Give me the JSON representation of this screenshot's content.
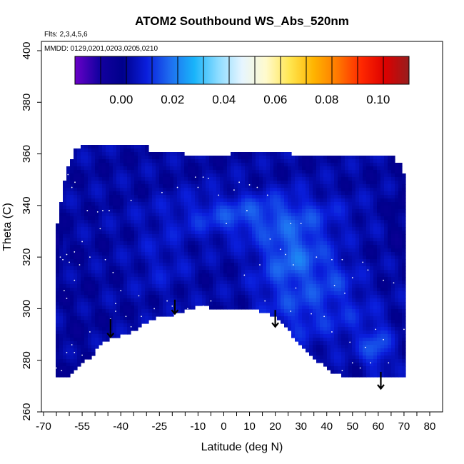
{
  "chart_data": {
    "type": "heatmap",
    "title": "ATOM2 Southbound WS_Abs_520nm",
    "flights_note": "Flts: 2,3,4,5,6",
    "dates_note": "MMDD: 0129,0201,0203,0205,0210",
    "xlabel": "Latitude (deg N)",
    "ylabel": "Theta (C)",
    "xlim": [
      -70,
      85
    ],
    "ylim": [
      260,
      405
    ],
    "x_tick_labels": [
      "-70",
      "-55",
      "-40",
      "-25",
      "-10",
      "0",
      "10",
      "20",
      "30",
      "40",
      "50",
      "60",
      "70",
      "80"
    ],
    "y_tick_labels": [
      "260",
      "280",
      "300",
      "320",
      "340",
      "360",
      "380",
      "400"
    ],
    "x_ticks": [
      -70,
      -65,
      -60,
      -55,
      -50,
      -45,
      -40,
      -35,
      -30,
      -25,
      -20,
      -15,
      -10,
      -5,
      0,
      5,
      10,
      15,
      20,
      25,
      30,
      35,
      40,
      45,
      50,
      55,
      60,
      65,
      70,
      75,
      80
    ],
    "y_ticks": [
      260,
      280,
      300,
      320,
      340,
      360,
      380,
      400
    ],
    "colorbar": {
      "range": [
        -0.018,
        0.112
      ],
      "tick_values": [
        0.0,
        0.02,
        0.04,
        0.06,
        0.08,
        0.1
      ],
      "tick_labels": [
        "0.00",
        "0.02",
        "0.04",
        "0.06",
        "0.08",
        "0.10"
      ],
      "colors": [
        "#6a00c8",
        "#1400a0",
        "#00008c",
        "#0a1edc",
        "#1e6ef0",
        "#19b4fa",
        "#8cdcff",
        "#e6f5ff",
        "#fffacd",
        "#ffe650",
        "#ffb400",
        "#ff7800",
        "#ff2800",
        "#dc0000",
        "#961e1e"
      ]
    },
    "field_top_boundary": [
      [
        -65.2,
        319
      ],
      [
        -65.2,
        328
      ],
      [
        -64.5,
        334
      ],
      [
        -63.5,
        340
      ],
      [
        -62,
        349
      ],
      [
        -61,
        353
      ],
      [
        -59.5,
        357
      ],
      [
        -57.5,
        362
      ],
      [
        -54.5,
        363
      ],
      [
        -29,
        363
      ],
      [
        -29,
        361
      ],
      [
        -15,
        361
      ],
      [
        -15,
        360
      ],
      [
        2,
        360
      ],
      [
        2,
        361
      ],
      [
        26,
        361
      ],
      [
        26,
        359
      ],
      [
        66.5,
        359
      ],
      [
        67,
        357
      ],
      [
        69.5,
        356
      ],
      [
        70,
        352
      ],
      [
        71,
        349
      ],
      [
        71,
        308
      ]
    ],
    "field_bottom_boundary": [
      [
        71,
        274
      ],
      [
        60,
        274
      ],
      [
        46,
        274
      ],
      [
        41,
        276
      ],
      [
        30.5,
        285
      ],
      [
        22,
        295
      ],
      [
        18,
        298
      ],
      [
        10,
        300
      ],
      [
        0,
        300
      ],
      [
        -10,
        301
      ],
      [
        -18,
        298
      ],
      [
        -26,
        297
      ],
      [
        -31,
        294
      ],
      [
        -38,
        290
      ],
      [
        -42,
        289
      ],
      [
        -47,
        287
      ],
      [
        -52,
        281
      ],
      [
        -55,
        279
      ],
      [
        -60.5,
        274
      ],
      [
        -65.2,
        274
      ]
    ],
    "field_base_value": 0.003,
    "field_features": [
      {
        "x": 12,
        "y": 336,
        "rx": 22,
        "ry": 6,
        "value": 0.018,
        "weight": 0.8
      },
      {
        "x": 27,
        "y": 320,
        "rx": 9,
        "ry": 11,
        "value": 0.022,
        "weight": 0.85
      },
      {
        "x": 32,
        "y": 301,
        "rx": 12,
        "ry": 10,
        "value": 0.016,
        "weight": 0.7
      },
      {
        "x": 42,
        "y": 312,
        "rx": 6,
        "ry": 6,
        "value": 0.016,
        "weight": 0.6
      },
      {
        "x": 59,
        "y": 285,
        "rx": 4,
        "ry": 6,
        "value": 0.02,
        "weight": 0.8
      },
      {
        "x": 50,
        "y": 296,
        "rx": 8,
        "ry": 8,
        "value": 0.012,
        "weight": 0.5
      },
      {
        "x": -24,
        "y": 318,
        "rx": 8,
        "ry": 10,
        "value": 0.011,
        "weight": 0.5
      },
      {
        "x": -58,
        "y": 292,
        "rx": 5,
        "ry": 16,
        "value": 0.001,
        "weight": 0.7
      },
      {
        "x": -65,
        "y": 326,
        "rx": 1.5,
        "ry": 3,
        "value": -0.01,
        "weight": 0.9
      },
      {
        "x": 68,
        "y": 335,
        "rx": 3,
        "ry": 8,
        "value": -0.003,
        "weight": 0.7
      }
    ],
    "samples": [
      [
        -62,
        355
      ],
      [
        -60.5,
        352
      ],
      [
        -59,
        347
      ],
      [
        -57.8,
        349
      ],
      [
        -53,
        338
      ],
      [
        -49,
        337.5
      ],
      [
        -47,
        338
      ],
      [
        -44.5,
        338
      ],
      [
        -48,
        331
      ],
      [
        -55,
        326
      ],
      [
        -58,
        322
      ],
      [
        -61,
        321
      ],
      [
        -62.5,
        319
      ],
      [
        -63.5,
        320
      ],
      [
        -60,
        318
      ],
      [
        -56,
        317
      ],
      [
        -52,
        320
      ],
      [
        -46,
        319
      ],
      [
        -43,
        314
      ],
      [
        -58,
        311
      ],
      [
        -62,
        307
      ],
      [
        -61,
        304
      ],
      [
        -40,
        307
      ],
      [
        -33,
        305
      ],
      [
        -42,
        302
      ],
      [
        -27,
        300
      ],
      [
        -22,
        303
      ],
      [
        -20,
        301
      ],
      [
        -14,
        300
      ],
      [
        -8,
        301
      ],
      [
        -5,
        303
      ],
      [
        -42,
        299
      ],
      [
        -38,
        297
      ],
      [
        -32,
        297
      ],
      [
        -36,
        293
      ],
      [
        -44,
        296
      ],
      [
        -52,
        291
      ],
      [
        -59,
        286
      ],
      [
        -61,
        283
      ],
      [
        -58,
        283
      ],
      [
        -55,
        282
      ],
      [
        -65,
        277
      ],
      [
        -63,
        276
      ],
      [
        -36,
        342
      ],
      [
        -24,
        345
      ],
      [
        -18,
        347
      ],
      [
        -10,
        347
      ],
      [
        -8,
        351
      ],
      [
        -6,
        350.5
      ],
      [
        -11,
        351
      ],
      [
        -2,
        344
      ],
      [
        4,
        346
      ],
      [
        6,
        349
      ],
      [
        10,
        348
      ],
      [
        13,
        347
      ],
      [
        9,
        338
      ],
      [
        17,
        344
      ],
      [
        1,
        333
      ],
      [
        26,
        333
      ],
      [
        30,
        333
      ],
      [
        18,
        327
      ],
      [
        22,
        323
      ],
      [
        24,
        321
      ],
      [
        27,
        317
      ],
      [
        36,
        320
      ],
      [
        42,
        319
      ],
      [
        46,
        319
      ],
      [
        54,
        318
      ],
      [
        56,
        315
      ],
      [
        50,
        312
      ],
      [
        62,
        311
      ],
      [
        66,
        310
      ],
      [
        43,
        309
      ],
      [
        47,
        306
      ],
      [
        14,
        317
      ],
      [
        16,
        303
      ],
      [
        26,
        299
      ],
      [
        34,
        298
      ],
      [
        39,
        297
      ],
      [
        42,
        291
      ],
      [
        49,
        287
      ],
      [
        55,
        285
      ],
      [
        59,
        292
      ],
      [
        62,
        288
      ],
      [
        70,
        292
      ],
      [
        64,
        279
      ],
      [
        57,
        279
      ],
      [
        50,
        279
      ],
      [
        46,
        276
      ],
      [
        53,
        277
      ],
      [
        70,
        273
      ],
      [
        8,
        313
      ],
      [
        28,
        308
      ],
      [
        21,
        291
      ]
    ],
    "arrows": [
      {
        "x": -44,
        "y_top": 296,
        "y_bottom": 289
      },
      {
        "x": -19,
        "y_top": 303.5,
        "y_bottom": 298
      },
      {
        "x": 20,
        "y_top": 299.5,
        "y_bottom": 293
      },
      {
        "x": 61,
        "y_top": 275.5,
        "y_bottom": 269
      }
    ]
  }
}
